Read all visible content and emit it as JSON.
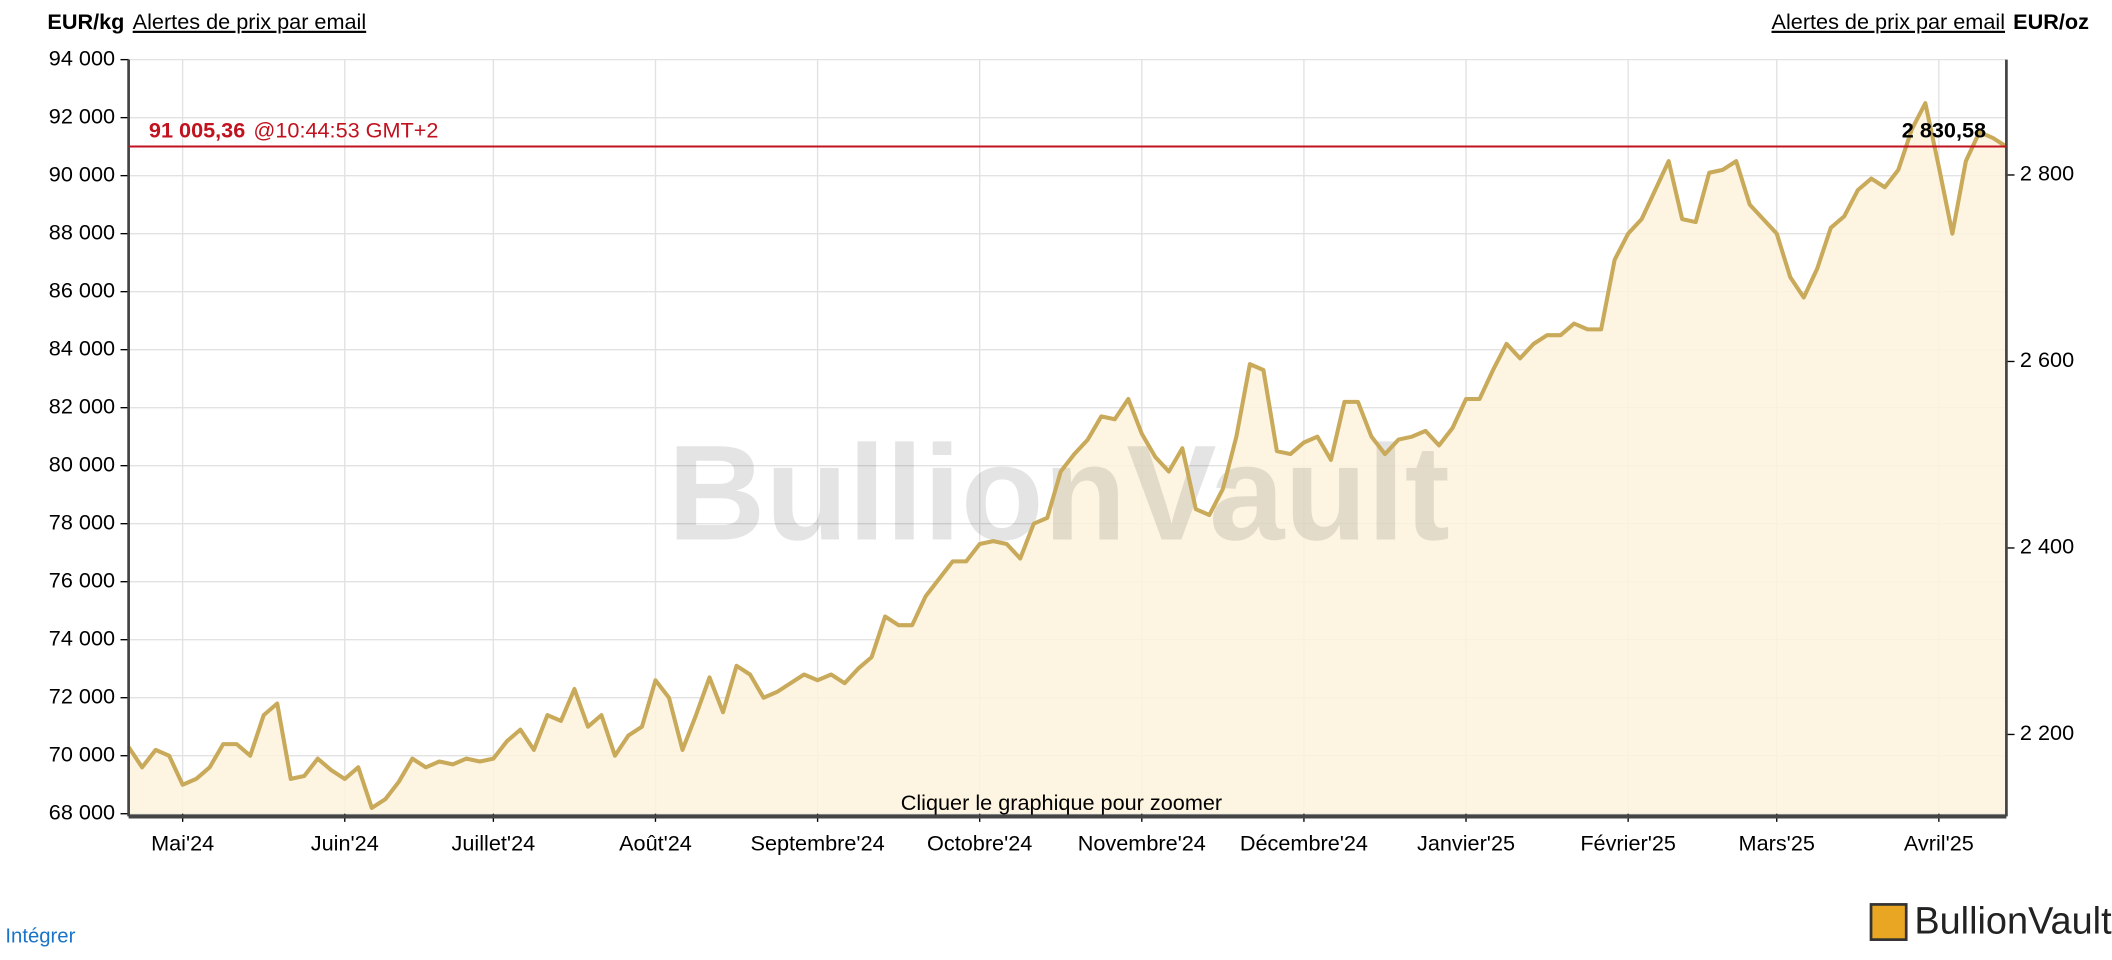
{
  "header": {
    "left_unit": "EUR/kg",
    "left_link": "Alertes de prix par email",
    "right_link": "Alertes de prix par email",
    "right_unit": "EUR/oz"
  },
  "chart_data": {
    "type": "line",
    "color": "#c9a95a",
    "grid": true,
    "categories": [
      null,
      null,
      null,
      null,
      "Mai'24",
      null,
      null,
      null,
      null,
      null,
      null,
      null,
      null,
      null,
      null,
      null,
      "Juin'24",
      null,
      null,
      null,
      null,
      null,
      null,
      null,
      null,
      null,
      null,
      "Juillet'24",
      null,
      null,
      null,
      null,
      null,
      null,
      null,
      null,
      null,
      null,
      null,
      "Août'24",
      null,
      null,
      null,
      null,
      null,
      null,
      null,
      null,
      null,
      null,
      null,
      "Septembre'24",
      null,
      null,
      null,
      null,
      null,
      null,
      null,
      null,
      null,
      null,
      null,
      "Octobre'24",
      null,
      null,
      null,
      null,
      null,
      null,
      null,
      null,
      null,
      null,
      null,
      "Novembre'24",
      null,
      null,
      null,
      null,
      null,
      null,
      null,
      null,
      null,
      null,
      null,
      "Décembre'24",
      null,
      null,
      null,
      null,
      null,
      null,
      null,
      null,
      null,
      null,
      null,
      "Janvier'25",
      null,
      null,
      null,
      null,
      null,
      null,
      null,
      null,
      null,
      null,
      null,
      "Février'25",
      null,
      null,
      null,
      null,
      null,
      null,
      null,
      null,
      null,
      null,
      "Mars'25",
      null,
      null,
      null,
      null,
      null,
      null,
      null,
      null,
      null,
      null,
      null,
      "Avril'25",
      null,
      null,
      null,
      null,
      null
    ],
    "values": [
      70300,
      69600,
      70200,
      70000,
      69000,
      69200,
      69600,
      70400,
      70400,
      70000,
      71400,
      71800,
      69200,
      69300,
      69900,
      69500,
      69200,
      69600,
      68200,
      68500,
      69100,
      69900,
      69600,
      69800,
      69700,
      69900,
      69800,
      69900,
      70500,
      70900,
      70200,
      71400,
      71200,
      72300,
      71000,
      71400,
      70000,
      70700,
      71000,
      72600,
      72000,
      70200,
      71400,
      72700,
      71500,
      73100,
      72800,
      72000,
      72200,
      72500,
      72800,
      72600,
      72800,
      72500,
      73000,
      73400,
      74800,
      74500,
      74500,
      75500,
      76100,
      76700,
      76700,
      77300,
      77400,
      77300,
      76800,
      78000,
      78200,
      79800,
      80400,
      80900,
      81700,
      81600,
      82300,
      81100,
      80300,
      79800,
      80600,
      78500,
      78300,
      79200,
      81000,
      83500,
      83300,
      80500,
      80400,
      80800,
      81000,
      80200,
      82200,
      82200,
      81000,
      80400,
      80900,
      81000,
      81200,
      80700,
      81300,
      82300,
      82300,
      83300,
      84200,
      83700,
      84200,
      84500,
      84500,
      84900,
      84700,
      84700,
      87100,
      88000,
      88500,
      89500,
      90500,
      88500,
      88400,
      90100,
      90200,
      90500,
      89000,
      88500,
      88000,
      86500,
      85800,
      86800,
      88200,
      88600,
      89500,
      89900,
      89600,
      90200,
      91600,
      92500,
      90300,
      88000,
      90500,
      91500,
      91300,
      91000
    ],
    "ylim": [
      68000,
      94000
    ],
    "yticks": [
      {
        "value": 68000,
        "label": "68 000"
      },
      {
        "value": 70000,
        "label": "70 000"
      },
      {
        "value": 72000,
        "label": "72 000"
      },
      {
        "value": 74000,
        "label": "74 000"
      },
      {
        "value": 76000,
        "label": "76 000"
      },
      {
        "value": 78000,
        "label": "78 000"
      },
      {
        "value": 80000,
        "label": "80 000"
      },
      {
        "value": 82000,
        "label": "82 000"
      },
      {
        "value": 84000,
        "label": "84 000"
      },
      {
        "value": 86000,
        "label": "86 000"
      },
      {
        "value": 88000,
        "label": "88 000"
      },
      {
        "value": 90000,
        "label": "90 000"
      },
      {
        "value": 92000,
        "label": "92 000"
      },
      {
        "value": 94000,
        "label": "94 000"
      }
    ],
    "y2lim": [
      2115,
      2923.7
    ],
    "y2ticks": [
      {
        "value": 2200,
        "label": "2 200"
      },
      {
        "value": 2400,
        "label": "2 400"
      },
      {
        "value": 2600,
        "label": "2 600"
      },
      {
        "value": 2800,
        "label": "2 800"
      }
    ],
    "current_price": {
      "value": 91005.36,
      "label": "91 005,36",
      "time": "@10:44:53 GMT+2",
      "oz": {
        "value": 2830.58,
        "label": "2 830,58"
      }
    }
  },
  "watermark": "BullionVault",
  "hint": "Cliquer le graphique pour zoomer",
  "footer": {
    "embed": "Intégrer",
    "logo": "BullionVault"
  }
}
